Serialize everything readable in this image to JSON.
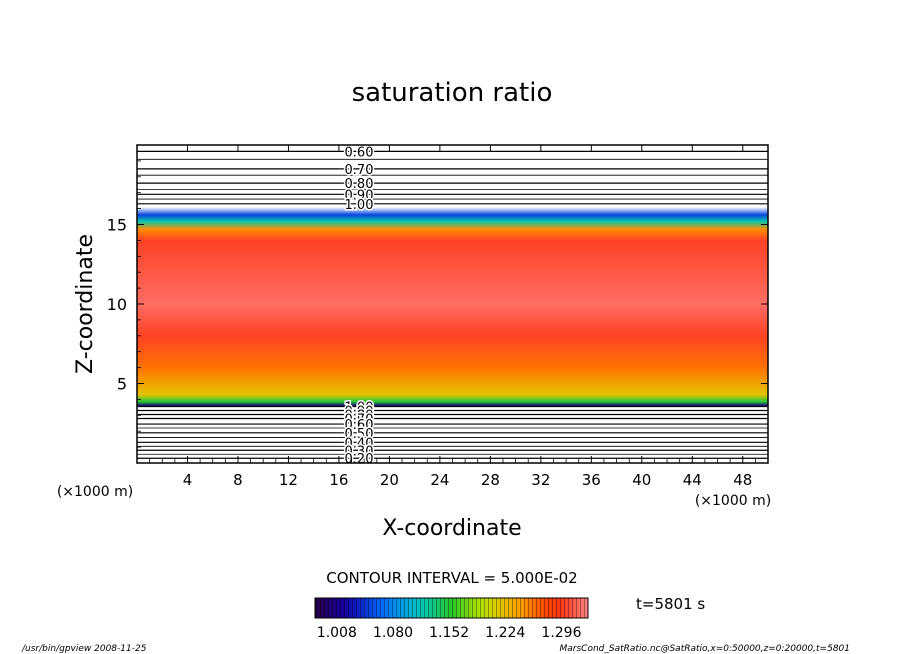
{
  "chart_data": {
    "type": "heatmap",
    "title": "saturation ratio",
    "xlabel": "X-coordinate",
    "ylabel": "Z-coordinate",
    "x_unit_left": "(×1000 m)",
    "x_unit_right": "(×1000 m)",
    "xlim": [
      0,
      50
    ],
    "ylim": [
      0,
      20
    ],
    "xticks": [
      4,
      8,
      12,
      16,
      20,
      24,
      28,
      32,
      36,
      40,
      44,
      48
    ],
    "yticks": [
      5,
      10,
      15
    ],
    "contour_interval": "CONTOUR INTERVAL = 5.000E-02",
    "time_label": "t=5801 s",
    "colorbar_ticks": [
      "1.008",
      "1.080",
      "1.152",
      "1.224",
      "1.296"
    ],
    "colorbar_range": [
      0.98,
      1.33
    ],
    "upper_contour_labels": [
      {
        "text": "0.60",
        "z": 19.6
      },
      {
        "text": "0.70",
        "z": 18.5
      },
      {
        "text": "0.80",
        "z": 17.6
      },
      {
        "text": "0.90",
        "z": 16.9
      },
      {
        "text": "1.00",
        "z": 16.3
      }
    ],
    "lower_contour_labels": [
      {
        "text": "1.00",
        "z": 3.55
      },
      {
        "text": "0.90",
        "z": 3.3
      },
      {
        "text": "0.80",
        "z": 3.05
      },
      {
        "text": "0.70",
        "z": 2.8
      },
      {
        "text": "0.60",
        "z": 2.45
      },
      {
        "text": "0.50",
        "z": 1.9
      },
      {
        "text": "0.40",
        "z": 1.3
      },
      {
        "text": "0.30",
        "z": 0.8
      },
      {
        "text": "0.20",
        "z": 0.3
      }
    ],
    "saturation_profile": [
      {
        "z": 3.6,
        "value": 1.0
      },
      {
        "z": 3.85,
        "value": 1.15
      },
      {
        "z": 4.3,
        "value": 1.22
      },
      {
        "z": 6.0,
        "value": 1.26
      },
      {
        "z": 8.0,
        "value": 1.3
      },
      {
        "z": 10.0,
        "value": 1.32
      },
      {
        "z": 12.0,
        "value": 1.31
      },
      {
        "z": 14.0,
        "value": 1.3
      },
      {
        "z": 14.7,
        "value": 1.25
      },
      {
        "z": 15.2,
        "value": 1.12
      },
      {
        "z": 15.6,
        "value": 1.05
      },
      {
        "z": 16.1,
        "value": 0.99
      }
    ]
  },
  "footer": {
    "left": "/usr/bin/gpview   2008-11-25",
    "right": "MarsCond_SatRatio.nc@SatRatio,x=0:50000,z=0:20000,t=5801"
  },
  "colors": {
    "frame": "#000000",
    "background": "#ffffff"
  }
}
